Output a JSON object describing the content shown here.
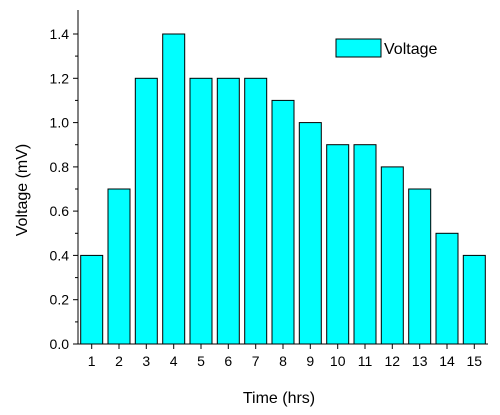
{
  "chart_data": {
    "type": "bar",
    "categories": [
      "1",
      "2",
      "3",
      "4",
      "5",
      "6",
      "7",
      "8",
      "9",
      "10",
      "11",
      "12",
      "13",
      "14",
      "15"
    ],
    "series": [
      {
        "name": "Voltage",
        "values": [
          0.4,
          0.7,
          1.2,
          1.4,
          1.2,
          1.2,
          1.2,
          1.1,
          1.0,
          0.9,
          0.9,
          0.8,
          0.7,
          0.5,
          0.4
        ]
      }
    ],
    "xlabel": "Time (hrs)",
    "ylabel": "Voltage (mV)",
    "ylim": [
      0,
      1.5
    ],
    "yticks": [
      "0.0",
      "0.2",
      "0.4",
      "0.6",
      "0.8",
      "1.0",
      "1.2",
      "1.4"
    ],
    "grid": false,
    "legend_position": "top-right",
    "colors": {
      "bar_fill": "#00FFFF",
      "bar_stroke": "#000000",
      "axis": "#000000"
    }
  }
}
